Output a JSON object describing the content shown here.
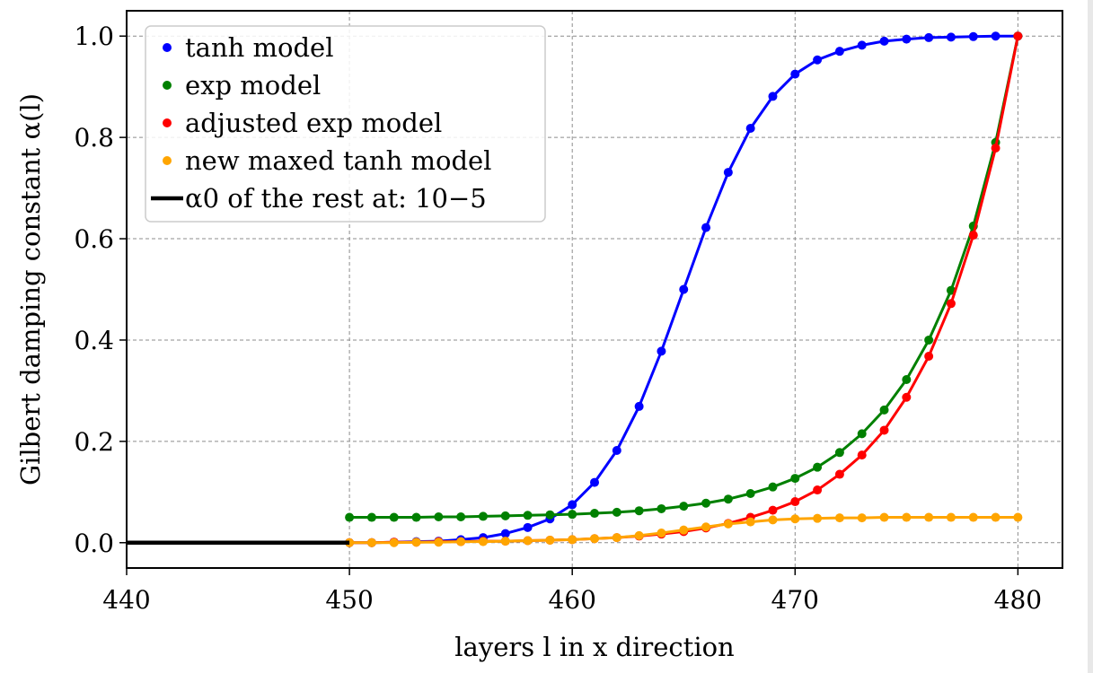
{
  "chart_data": {
    "type": "line",
    "xlabel": "layers l in x direction",
    "ylabel": "Gilbert damping constant α(l)",
    "xlim": [
      440,
      482
    ],
    "ylim": [
      -0.05,
      1.05
    ],
    "xticks": [
      440,
      450,
      460,
      470,
      480
    ],
    "yticks": [
      0.0,
      0.2,
      0.4,
      0.6,
      0.8,
      1.0
    ],
    "grid": true,
    "legend_position": "top-left",
    "series": [
      {
        "name": "tanh model",
        "color": "#0000ff",
        "marker": true,
        "x": [
          450,
          451,
          452,
          453,
          454,
          455,
          456,
          457,
          458,
          459,
          460,
          461,
          462,
          463,
          464,
          465,
          466,
          467,
          468,
          469,
          470,
          471,
          472,
          473,
          474,
          475,
          476,
          477,
          478,
          479,
          480
        ],
        "values": [
          0.0,
          0.0,
          0.001,
          0.002,
          0.003,
          0.006,
          0.01,
          0.018,
          0.03,
          0.047,
          0.075,
          0.119,
          0.182,
          0.269,
          0.378,
          0.5,
          0.622,
          0.731,
          0.818,
          0.881,
          0.925,
          0.953,
          0.97,
          0.982,
          0.99,
          0.994,
          0.997,
          0.998,
          0.999,
          1.0,
          1.0
        ]
      },
      {
        "name": "exp model",
        "color": "#008000",
        "marker": true,
        "x": [
          450,
          451,
          452,
          453,
          454,
          455,
          456,
          457,
          458,
          459,
          460,
          461,
          462,
          463,
          464,
          465,
          466,
          467,
          468,
          469,
          470,
          471,
          472,
          473,
          474,
          475,
          476,
          477,
          478,
          479,
          480
        ],
        "values": [
          0.05,
          0.05,
          0.05,
          0.05,
          0.051,
          0.051,
          0.052,
          0.053,
          0.054,
          0.055,
          0.056,
          0.058,
          0.06,
          0.063,
          0.067,
          0.072,
          0.078,
          0.086,
          0.097,
          0.11,
          0.127,
          0.149,
          0.178,
          0.215,
          0.262,
          0.322,
          0.4,
          0.498,
          0.625,
          0.79,
          1.0
        ]
      },
      {
        "name": "adjusted exp model",
        "color": "#ff0000",
        "marker": true,
        "x": [
          450,
          451,
          452,
          453,
          454,
          455,
          456,
          457,
          458,
          459,
          460,
          461,
          462,
          463,
          464,
          465,
          466,
          467,
          468,
          469,
          470,
          471,
          472,
          473,
          474,
          475,
          476,
          477,
          478,
          479,
          480
        ],
        "values": [
          0.0,
          0.0,
          0.001,
          0.001,
          0.002,
          0.002,
          0.003,
          0.003,
          0.004,
          0.005,
          0.006,
          0.008,
          0.01,
          0.013,
          0.017,
          0.022,
          0.029,
          0.038,
          0.05,
          0.064,
          0.081,
          0.104,
          0.135,
          0.173,
          0.222,
          0.287,
          0.368,
          0.472,
          0.607,
          0.779,
          1.0
        ]
      },
      {
        "name": "new maxed tanh model",
        "color": "#ffa500",
        "marker": true,
        "x": [
          450,
          451,
          452,
          453,
          454,
          455,
          456,
          457,
          458,
          459,
          460,
          461,
          462,
          463,
          464,
          465,
          466,
          467,
          468,
          469,
          470,
          471,
          472,
          473,
          474,
          475,
          476,
          477,
          478,
          479,
          480
        ],
        "values": [
          0.0,
          0.0,
          0.0,
          0.001,
          0.001,
          0.002,
          0.002,
          0.003,
          0.004,
          0.005,
          0.006,
          0.008,
          0.01,
          0.014,
          0.019,
          0.025,
          0.031,
          0.037,
          0.041,
          0.045,
          0.047,
          0.048,
          0.049,
          0.049,
          0.05,
          0.05,
          0.05,
          0.05,
          0.05,
          0.05,
          0.05
        ]
      },
      {
        "name": "α0 of the rest at: 10−5",
        "color": "#000000",
        "marker": false,
        "x": [
          440,
          450
        ],
        "values": [
          1e-05,
          1e-05
        ]
      }
    ]
  }
}
